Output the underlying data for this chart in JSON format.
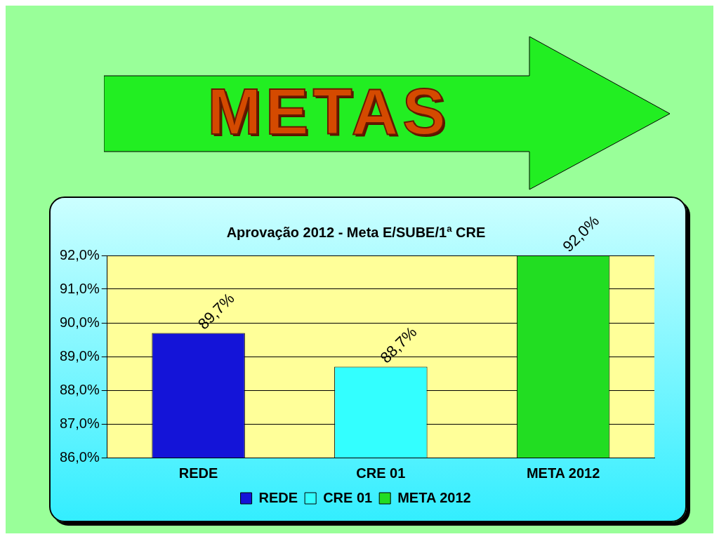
{
  "chart_data": {
    "type": "bar",
    "title": "METAS",
    "subtitle": "Aprovação 2012 - Meta E/SUBE/1ª CRE",
    "categories": [
      "REDE",
      "CRE 01",
      "META 2012"
    ],
    "series": [
      {
        "name": "REDE",
        "color": "#1414d8",
        "values": [
          89.7,
          null,
          null
        ],
        "value_labels": [
          "89,7%",
          null,
          null
        ]
      },
      {
        "name": "CRE 01",
        "color": "#33ffff",
        "values": [
          null,
          88.7,
          null
        ],
        "value_labels": [
          null,
          "88,7%",
          null
        ]
      },
      {
        "name": "META 2012",
        "color": "#22dd22",
        "values": [
          null,
          null,
          92.0
        ],
        "value_labels": [
          null,
          null,
          "92,0%"
        ]
      }
    ],
    "ylim": [
      86,
      92
    ],
    "yticks": [
      {
        "value": 86,
        "label": "86,0%"
      },
      {
        "value": 87,
        "label": "87,0%"
      },
      {
        "value": 88,
        "label": "88,0%"
      },
      {
        "value": 89,
        "label": "89,0%"
      },
      {
        "value": 90,
        "label": "90,0%"
      },
      {
        "value": 91,
        "label": "91,0%"
      },
      {
        "value": 92,
        "label": "92,0%"
      }
    ],
    "grid": "y",
    "legend": "bottom"
  }
}
